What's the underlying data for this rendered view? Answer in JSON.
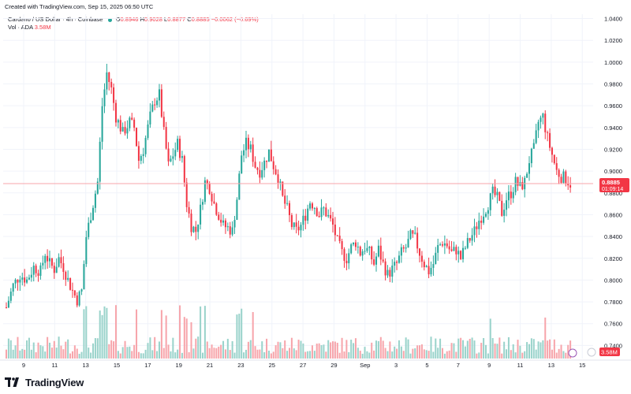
{
  "header": {
    "created_text": "Created with TradingView.com, Sep 15, 2025 06:50 UTC"
  },
  "legend": {
    "symbol": "Cardano / US Dollar · 4h · Coinbase",
    "o_label": "O",
    "o_value": "0.8946",
    "h_label": "H",
    "h_value": "0.9028",
    "l_label": "L",
    "l_value": "0.8877",
    "c_label": "C",
    "c_value": "0.8885",
    "change": "−0.0062 (−0.69%)",
    "vol_label": "Vol · ADA",
    "vol_value": "3.58M"
  },
  "price_badge": {
    "price": "0.8885",
    "countdown": "01:09:14"
  },
  "vol_badge": "3.58M",
  "brand": "TradingView",
  "colors": {
    "up": "#26a69a",
    "down": "#f23645",
    "up_vol": "#9ad3cb",
    "down_vol": "#f7a5ab",
    "grid": "#f0f3fa",
    "text": "#131722"
  },
  "chart_data": {
    "type": "candlestick",
    "title": "Cardano / US Dollar · 4h · Coinbase",
    "y_axis": {
      "ticks": [
        "1.0400",
        "1.0200",
        "1.0000",
        "0.9800",
        "0.9600",
        "0.9400",
        "0.9200",
        "0.9000",
        "0.8800",
        "0.8600",
        "0.8400",
        "0.8200",
        "0.8000",
        "0.7800",
        "0.7600",
        "0.7400"
      ],
      "ylim": [
        0.728,
        1.044
      ],
      "position": "right"
    },
    "x_axis": {
      "ticks": [
        "9",
        "11",
        "13",
        "15",
        "17",
        "19",
        "21",
        "23",
        "25",
        "27",
        "29",
        "Sep",
        "3",
        "5",
        "7",
        "9",
        "11",
        "13",
        "15"
      ]
    },
    "current_price": 0.8885,
    "volume_unit": "M",
    "close_path": [
      [
        0,
        0.775
      ],
      [
        3,
        0.795
      ],
      [
        6,
        0.805
      ],
      [
        9,
        0.8
      ],
      [
        12,
        0.812
      ],
      [
        15,
        0.808
      ],
      [
        17,
        0.825
      ],
      [
        19,
        0.815
      ],
      [
        21,
        0.81
      ],
      [
        23,
        0.82
      ],
      [
        25,
        0.812
      ],
      [
        27,
        0.8
      ],
      [
        29,
        0.79
      ],
      [
        31,
        0.782
      ],
      [
        33,
        0.79
      ],
      [
        35,
        0.84
      ],
      [
        37,
        0.86
      ],
      [
        39,
        0.88
      ],
      [
        40,
        0.89
      ],
      [
        42,
        0.96
      ],
      [
        44,
        0.99
      ],
      [
        46,
        0.975
      ],
      [
        48,
        0.95
      ],
      [
        51,
        0.935
      ],
      [
        54,
        0.945
      ],
      [
        56,
        0.94
      ],
      [
        58,
        0.91
      ],
      [
        60,
        0.92
      ],
      [
        63,
        0.95
      ],
      [
        65,
        0.965
      ],
      [
        67,
        0.97
      ],
      [
        69,
        0.935
      ],
      [
        71,
        0.905
      ],
      [
        73,
        0.915
      ],
      [
        75,
        0.925
      ],
      [
        77,
        0.91
      ],
      [
        79,
        0.87
      ],
      [
        81,
        0.85
      ],
      [
        83,
        0.845
      ],
      [
        85,
        0.865
      ],
      [
        87,
        0.89
      ],
      [
        89,
        0.885
      ],
      [
        91,
        0.87
      ],
      [
        93,
        0.86
      ],
      [
        95,
        0.85
      ],
      [
        97,
        0.848
      ],
      [
        99,
        0.845
      ],
      [
        101,
        0.875
      ],
      [
        103,
        0.915
      ],
      [
        105,
        0.925
      ],
      [
        107,
        0.92
      ],
      [
        109,
        0.905
      ],
      [
        111,
        0.9
      ],
      [
        113,
        0.908
      ],
      [
        115,
        0.918
      ],
      [
        117,
        0.905
      ],
      [
        119,
        0.895
      ],
      [
        121,
        0.875
      ],
      [
        123,
        0.865
      ],
      [
        125,
        0.85
      ],
      [
        127,
        0.845
      ],
      [
        129,
        0.85
      ],
      [
        131,
        0.86
      ],
      [
        133,
        0.872
      ],
      [
        135,
        0.868
      ],
      [
        137,
        0.86
      ],
      [
        139,
        0.865
      ],
      [
        141,
        0.858
      ],
      [
        143,
        0.85
      ],
      [
        145,
        0.835
      ],
      [
        147,
        0.825
      ],
      [
        149,
        0.82
      ],
      [
        151,
        0.83
      ],
      [
        153,
        0.835
      ],
      [
        155,
        0.825
      ],
      [
        157,
        0.83
      ],
      [
        159,
        0.825
      ],
      [
        161,
        0.815
      ],
      [
        163,
        0.828
      ],
      [
        165,
        0.815
      ],
      [
        167,
        0.805
      ],
      [
        169,
        0.81
      ],
      [
        171,
        0.815
      ],
      [
        173,
        0.825
      ],
      [
        175,
        0.83
      ],
      [
        177,
        0.84
      ],
      [
        179,
        0.838
      ],
      [
        181,
        0.825
      ],
      [
        183,
        0.815
      ],
      [
        185,
        0.808
      ],
      [
        187,
        0.815
      ],
      [
        189,
        0.83
      ],
      [
        191,
        0.835
      ],
      [
        193,
        0.832
      ],
      [
        195,
        0.825
      ],
      [
        197,
        0.828
      ],
      [
        199,
        0.82
      ],
      [
        201,
        0.83
      ],
      [
        203,
        0.838
      ],
      [
        205,
        0.845
      ],
      [
        207,
        0.855
      ],
      [
        209,
        0.862
      ],
      [
        211,
        0.87
      ],
      [
        213,
        0.88
      ],
      [
        215,
        0.875
      ],
      [
        217,
        0.862
      ],
      [
        219,
        0.875
      ],
      [
        221,
        0.88
      ],
      [
        223,
        0.89
      ],
      [
        225,
        0.885
      ],
      [
        227,
        0.89
      ],
      [
        229,
        0.91
      ],
      [
        231,
        0.92
      ],
      [
        233,
        0.945
      ],
      [
        235,
        0.95
      ],
      [
        237,
        0.93
      ],
      [
        239,
        0.915
      ],
      [
        241,
        0.9
      ],
      [
        243,
        0.895
      ],
      [
        245,
        0.893
      ],
      [
        247,
        0.8885
      ]
    ]
  }
}
